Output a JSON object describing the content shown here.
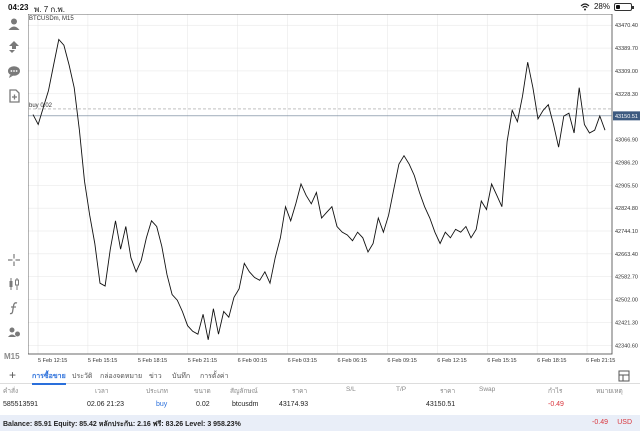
{
  "status": {
    "time": "04:23",
    "date": "พ. 7 ก.พ.",
    "battery": "28%",
    "battery_level": 0.28
  },
  "chart": {
    "title": "BTCUSDm, M15",
    "timeframe": "M15",
    "trade_label": "buy 0.02",
    "current_price_label": "43150.51"
  },
  "toolbar": {
    "icons": [
      "account-icon",
      "trade-icon",
      "chat-icon",
      "new-order-icon",
      "crosshair-icon",
      "candles-icon",
      "function-icon",
      "objects-icon"
    ]
  },
  "tabs": [
    {
      "label": "การซื้อขาย",
      "active": true
    },
    {
      "label": "ประวัติ"
    },
    {
      "label": "กล่องจดหมาย"
    },
    {
      "label": "ข่าว"
    },
    {
      "label": "บันทึก"
    },
    {
      "label": "การตั้งค่า"
    }
  ],
  "table": {
    "headers": [
      "คำสั่ง",
      "เวลา",
      "ประเภท",
      "ขนาด",
      "สัญลักษณ์",
      "ราคา",
      "S/L",
      "T/P",
      "ราคา",
      "Swap",
      "กำไร",
      "หมายเหตุ"
    ],
    "rows": [
      {
        "order": "585513591",
        "time": "02.06 21:23",
        "type": "buy",
        "size": "0.02",
        "symbol": "btcusdm",
        "open_price": "43174.93",
        "sl": "",
        "tp": "",
        "price": "43150.51",
        "swap": "",
        "profit": "-0.49",
        "comment": ""
      }
    ]
  },
  "balance": {
    "text": "Balance: 85.91  Equity: 85.42  หลักประกัน: 2.16  ฟรี: 83.26  Level: 3 958.23%",
    "profit": "-0.49",
    "currency": "USD"
  },
  "chart_data": {
    "type": "line",
    "title": "BTCUSDm, M15",
    "y_ticks": [
      42340.6,
      42421.3,
      42502.0,
      42582.7,
      42663.4,
      42744.1,
      42824.8,
      42905.5,
      42986.2,
      43066.9,
      43150.51,
      43228.3,
      43309.0,
      43389.7,
      43470.4
    ],
    "x_ticks": [
      "5 Feb 12:15",
      "5 Feb 15:15",
      "5 Feb 18:15",
      "5 Feb 21:15",
      "6 Feb 00:15",
      "6 Feb 03:15",
      "6 Feb 06:15",
      "6 Feb 09:15",
      "6 Feb 12:15",
      "6 Feb 15:15",
      "6 Feb 18:15",
      "6 Feb 21:15"
    ],
    "ylim": [
      42310,
      43510
    ],
    "trade_level": 43174.93,
    "current_price": 43150.51,
    "series": [
      {
        "values": [
          43155,
          43120,
          43180,
          43240,
          43330,
          43420,
          43400,
          43330,
          43250,
          43100,
          42920,
          42800,
          42700,
          42560,
          42550,
          42680,
          42780,
          42680,
          42760,
          42650,
          42600,
          42640,
          42720,
          42780,
          42760,
          42690,
          42590,
          42520,
          42500,
          42460,
          42410,
          42390,
          42380,
          42450,
          42360,
          42470,
          42380,
          42460,
          42440,
          42510,
          42540,
          42630,
          42600,
          42580,
          42570,
          42600,
          42560,
          42650,
          42720,
          42830,
          42780,
          42840,
          42910,
          42870,
          42840,
          42880,
          42790,
          42810,
          42830,
          42760,
          42740,
          42730,
          42710,
          42740,
          42720,
          42670,
          42700,
          42790,
          42740,
          42800,
          42890,
          42980,
          43010,
          42980,
          42940,
          42880,
          42830,
          42790,
          42740,
          42700,
          42740,
          42720,
          42750,
          42740,
          42760,
          42720,
          42750,
          42850,
          42820,
          42910,
          42870,
          42830,
          43060,
          43170,
          43130,
          43220,
          43340,
          43250,
          43140,
          43170,
          43190,
          43120,
          43040,
          43150,
          43160,
          43090,
          43250,
          43120,
          43090,
          43100,
          43150,
          43100
        ]
      }
    ]
  }
}
